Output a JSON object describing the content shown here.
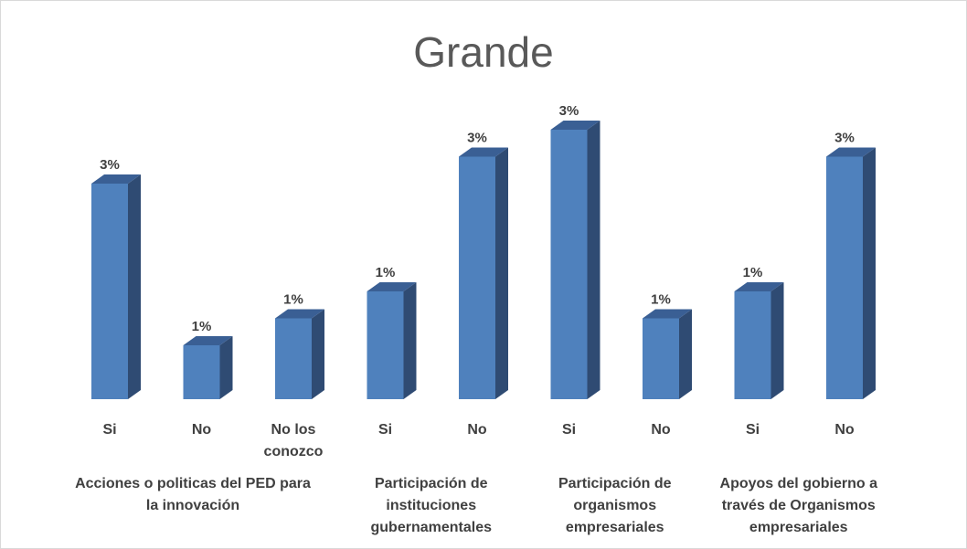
{
  "chart_data": {
    "type": "bar",
    "title": "Grande",
    "xlabel": "",
    "ylabel": "",
    "grid": false,
    "legend": "none",
    "bar_color": "#4f81bd",
    "groups": [
      {
        "label": [
          "Acciones o politicas del PED para",
          "la innovación"
        ],
        "categories": [
          [
            "Si"
          ],
          [
            "No"
          ],
          [
            "No los",
            "conozco"
          ]
        ]
      },
      {
        "label": [
          "Participación de",
          "instituciones",
          "gubernamentales"
        ],
        "categories": [
          [
            "Si"
          ],
          [
            "No"
          ]
        ]
      },
      {
        "label": [
          "Participación de",
          "organismos",
          "empresariales"
        ],
        "categories": [
          [
            "Si"
          ],
          [
            "No"
          ]
        ]
      },
      {
        "label": [
          "Apoyos del gobierno a",
          "través de Organismos",
          "empresariales"
        ],
        "categories": [
          [
            "Si"
          ],
          [
            "No"
          ]
        ]
      }
    ],
    "values": [
      8,
      2,
      3,
      4,
      9,
      10,
      3,
      4,
      9
    ],
    "data_labels": [
      "3%",
      "1%",
      "1%",
      "1%",
      "3%",
      "3%",
      "1%",
      "1%",
      "3%"
    ]
  }
}
